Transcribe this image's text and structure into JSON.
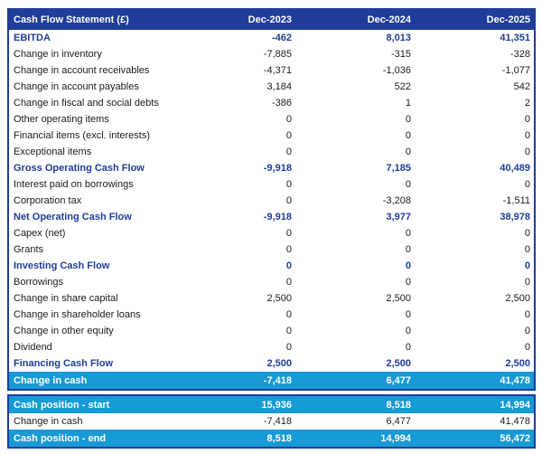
{
  "colors": {
    "navy": "#1F3D99",
    "cyan": "#189AD5",
    "body_text": "#1A1A1A"
  },
  "table": {
    "title": "Cash Flow Statement (£)",
    "columns": [
      "Dec-2023",
      "Dec-2024",
      "Dec-2025"
    ],
    "rows": [
      {
        "label": "EBITDA",
        "values": [
          "-462",
          "8,013",
          "41,351"
        ],
        "style": "subtotal"
      },
      {
        "label": "Change in inventory",
        "values": [
          "-7,885",
          "-315",
          "-328"
        ],
        "style": "normal"
      },
      {
        "label": "Change in account receivables",
        "values": [
          "-4,371",
          "-1,036",
          "-1,077"
        ],
        "style": "normal"
      },
      {
        "label": "Change in account payables",
        "values": [
          "3,184",
          "522",
          "542"
        ],
        "style": "normal"
      },
      {
        "label": "Change in fiscal and social debts",
        "values": [
          "-386",
          "1",
          "2"
        ],
        "style": "normal"
      },
      {
        "label": "Other operating items",
        "values": [
          "0",
          "0",
          "0"
        ],
        "style": "normal"
      },
      {
        "label": "Financial items (excl. interests)",
        "values": [
          "0",
          "0",
          "0"
        ],
        "style": "normal"
      },
      {
        "label": "Exceptional items",
        "values": [
          "0",
          "0",
          "0"
        ],
        "style": "normal"
      },
      {
        "label": "Gross Operating Cash Flow",
        "values": [
          "-9,918",
          "7,185",
          "40,489"
        ],
        "style": "subtotal"
      },
      {
        "label": "Interest paid on borrowings",
        "values": [
          "0",
          "0",
          "0"
        ],
        "style": "normal"
      },
      {
        "label": "Corporation tax",
        "values": [
          "0",
          "-3,208",
          "-1,511"
        ],
        "style": "normal"
      },
      {
        "label": "Net Operating Cash Flow",
        "values": [
          "-9,918",
          "3,977",
          "38,978"
        ],
        "style": "subtotal"
      },
      {
        "label": "Capex (net)",
        "values": [
          "0",
          "0",
          "0"
        ],
        "style": "normal"
      },
      {
        "label": "Grants",
        "values": [
          "0",
          "0",
          "0"
        ],
        "style": "normal"
      },
      {
        "label": "Investing Cash Flow",
        "values": [
          "0",
          "0",
          "0"
        ],
        "style": "subtotal"
      },
      {
        "label": "Borrowings",
        "values": [
          "0",
          "0",
          "0"
        ],
        "style": "normal"
      },
      {
        "label": "Change in share capital",
        "values": [
          "2,500",
          "2,500",
          "2,500"
        ],
        "style": "normal"
      },
      {
        "label": "Change in shareholder loans",
        "values": [
          "0",
          "0",
          "0"
        ],
        "style": "normal"
      },
      {
        "label": "Change in other equity",
        "values": [
          "0",
          "0",
          "0"
        ],
        "style": "normal"
      },
      {
        "label": "Dividend",
        "values": [
          "0",
          "0",
          "0"
        ],
        "style": "normal"
      },
      {
        "label": "Financing Cash Flow",
        "values": [
          "2,500",
          "2,500",
          "2,500"
        ],
        "style": "subtotal"
      },
      {
        "label": "Change in cash",
        "values": [
          "-7,418",
          "6,477",
          "41,478"
        ],
        "style": "highlight"
      }
    ],
    "summary_rows": [
      {
        "label": "Cash position - start",
        "values": [
          "15,936",
          "8,518",
          "14,994"
        ],
        "style": "highlight"
      },
      {
        "label": "Change in cash",
        "values": [
          "-7,418",
          "6,477",
          "41,478"
        ],
        "style": "normal"
      },
      {
        "label": "Cash position - end",
        "values": [
          "8,518",
          "14,994",
          "56,472"
        ],
        "style": "highlight"
      }
    ]
  }
}
